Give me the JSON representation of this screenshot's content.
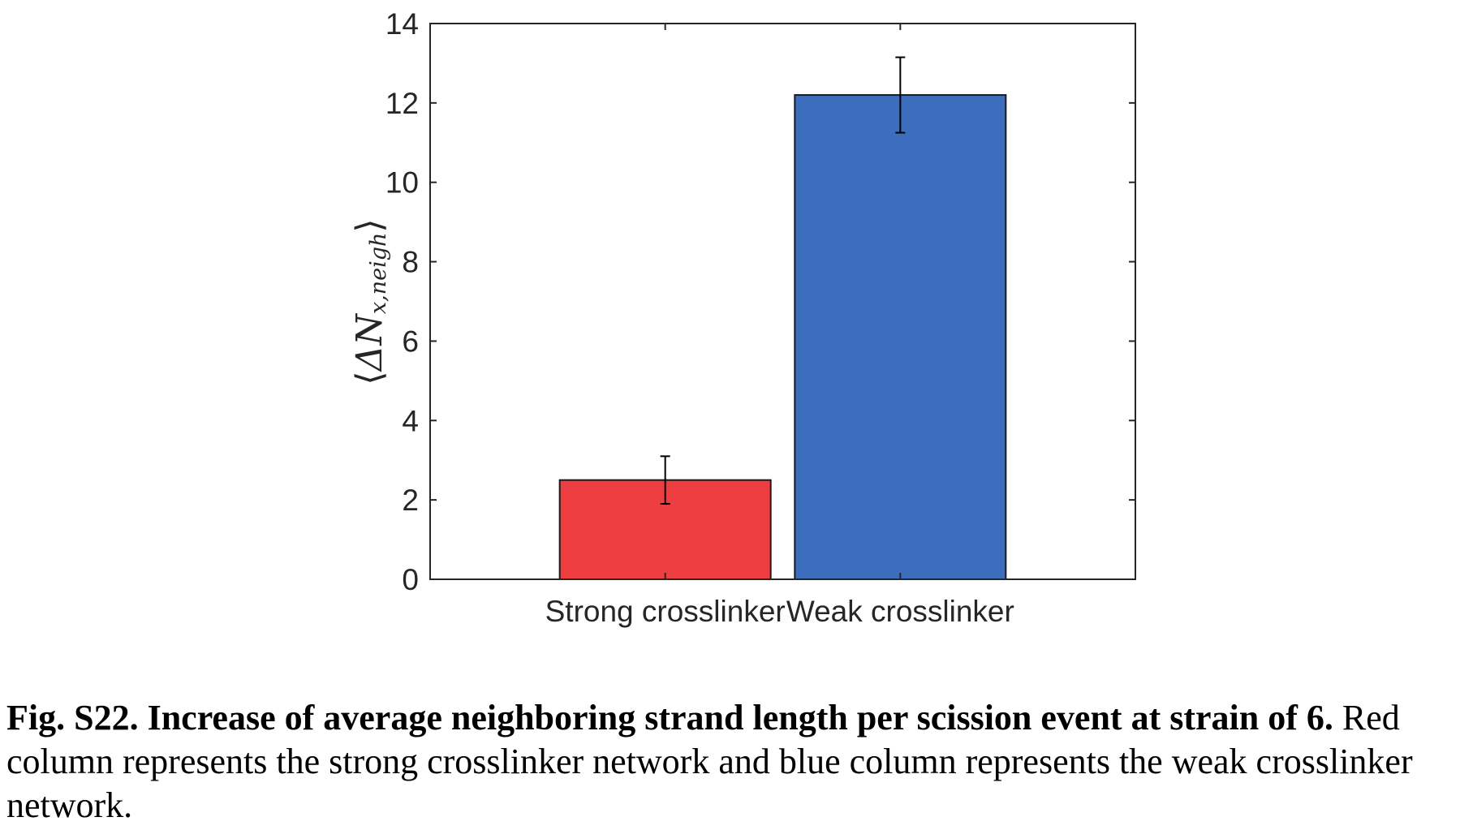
{
  "chart_data": {
    "type": "bar",
    "categories": [
      "Strong crosslinker",
      "Weak crosslinker"
    ],
    "values": [
      2.5,
      12.2
    ],
    "error_bars": [
      0.6,
      0.95
    ],
    "bar_colors": [
      "#ef3e42",
      "#3d6ebd"
    ],
    "ylabel": "⟨ΔN x,neigh⟩",
    "ylabel_parts": {
      "open": "⟨",
      "main": "ΔN",
      "sub": "x,neigh",
      "close": "⟩"
    },
    "ylim": [
      0,
      14
    ],
    "yticks": [
      "0",
      "2",
      "4",
      "6",
      "8",
      "10",
      "12",
      "14"
    ],
    "grid": false,
    "legend": "none"
  },
  "caption": {
    "title": "Fig. S22. Increase of average neighboring strand length per scission event at strain of 6.",
    "body": " Red column represents the strong crosslinker network and blue column represents the weak crosslinker network."
  }
}
